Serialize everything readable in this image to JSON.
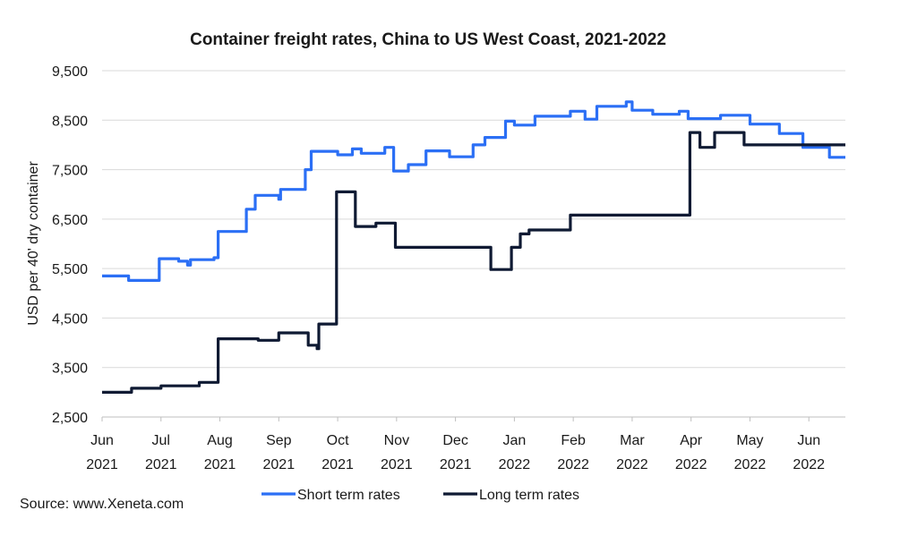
{
  "chart_data": {
    "type": "line",
    "title": "Container freight rates, China to US West Coast, 2021-2022",
    "ylabel": "USD per 40' dry container",
    "xlabel": "",
    "source": "Source: www.Xeneta.com",
    "ylim": [
      2500,
      9500
    ],
    "yticks": [
      2500,
      3500,
      4500,
      5500,
      6500,
      7500,
      8500,
      9500
    ],
    "ytick_labels": [
      "2,500",
      "3,500",
      "4,500",
      "5,500",
      "6,500",
      "7,500",
      "8,500",
      "9,500"
    ],
    "x_unit": "months since Jun 2021",
    "xlim": [
      0,
      12.62
    ],
    "xticks": [
      {
        "pos": 0,
        "month": "Jun",
        "year": "2021"
      },
      {
        "pos": 1,
        "month": "Jul",
        "year": "2021"
      },
      {
        "pos": 2,
        "month": "Aug",
        "year": "2021"
      },
      {
        "pos": 3,
        "month": "Sep",
        "year": "2021"
      },
      {
        "pos": 4,
        "month": "Oct",
        "year": "2021"
      },
      {
        "pos": 5,
        "month": "Nov",
        "year": "2021"
      },
      {
        "pos": 6,
        "month": "Dec",
        "year": "2021"
      },
      {
        "pos": 7,
        "month": "Jan",
        "year": "2022"
      },
      {
        "pos": 8,
        "month": "Feb",
        "year": "2022"
      },
      {
        "pos": 9,
        "month": "Mar",
        "year": "2022"
      },
      {
        "pos": 10,
        "month": "Apr",
        "year": "2022"
      },
      {
        "pos": 11,
        "month": "May",
        "year": "2022"
      },
      {
        "pos": 12,
        "month": "Jun",
        "year": "2022"
      }
    ],
    "grid": true,
    "legend_position": "bottom",
    "series": [
      {
        "name": "Short term rates",
        "color": "#2b6ff5",
        "points": [
          [
            0,
            5350
          ],
          [
            0.45,
            5260
          ],
          [
            0.95,
            5260
          ],
          [
            0.97,
            5700
          ],
          [
            1.3,
            5650
          ],
          [
            1.45,
            5570
          ],
          [
            1.5,
            5680
          ],
          [
            1.9,
            5720
          ],
          [
            1.97,
            6250
          ],
          [
            2.45,
            6700
          ],
          [
            2.6,
            6980
          ],
          [
            3.0,
            6900
          ],
          [
            3.03,
            7100
          ],
          [
            3.45,
            7500
          ],
          [
            3.55,
            7870
          ],
          [
            4.0,
            7800
          ],
          [
            4.25,
            7920
          ],
          [
            4.4,
            7830
          ],
          [
            4.8,
            7950
          ],
          [
            4.95,
            7470
          ],
          [
            5.2,
            7600
          ],
          [
            5.5,
            7880
          ],
          [
            5.9,
            7760
          ],
          [
            6.3,
            8000
          ],
          [
            6.5,
            8150
          ],
          [
            6.85,
            8480
          ],
          [
            7.0,
            8400
          ],
          [
            7.35,
            8580
          ],
          [
            7.95,
            8680
          ],
          [
            8.2,
            8520
          ],
          [
            8.4,
            8780
          ],
          [
            8.9,
            8870
          ],
          [
            9.0,
            8700
          ],
          [
            9.35,
            8620
          ],
          [
            9.8,
            8680
          ],
          [
            9.95,
            8530
          ],
          [
            10.5,
            8600
          ],
          [
            11.0,
            8420
          ],
          [
            11.5,
            8230
          ],
          [
            11.9,
            7950
          ],
          [
            12.35,
            7750
          ],
          [
            12.62,
            7750
          ]
        ]
      },
      {
        "name": "Long term rates",
        "color": "#0f1a33",
        "points": [
          [
            0,
            3000
          ],
          [
            0.5,
            3080
          ],
          [
            1.0,
            3130
          ],
          [
            1.65,
            3200
          ],
          [
            1.97,
            4080
          ],
          [
            2.65,
            4050
          ],
          [
            3.0,
            4200
          ],
          [
            3.5,
            3950
          ],
          [
            3.65,
            3880
          ],
          [
            3.68,
            4380
          ],
          [
            3.98,
            7050
          ],
          [
            4.3,
            6350
          ],
          [
            4.65,
            6420
          ],
          [
            4.98,
            5930
          ],
          [
            6.55,
            5930
          ],
          [
            6.6,
            5480
          ],
          [
            6.95,
            5930
          ],
          [
            7.1,
            6200
          ],
          [
            7.25,
            6280
          ],
          [
            7.95,
            6580
          ],
          [
            9.9,
            6580
          ],
          [
            9.98,
            8250
          ],
          [
            10.15,
            7950
          ],
          [
            10.4,
            8250
          ],
          [
            10.9,
            8000
          ],
          [
            12.62,
            8000
          ]
        ]
      }
    ]
  }
}
